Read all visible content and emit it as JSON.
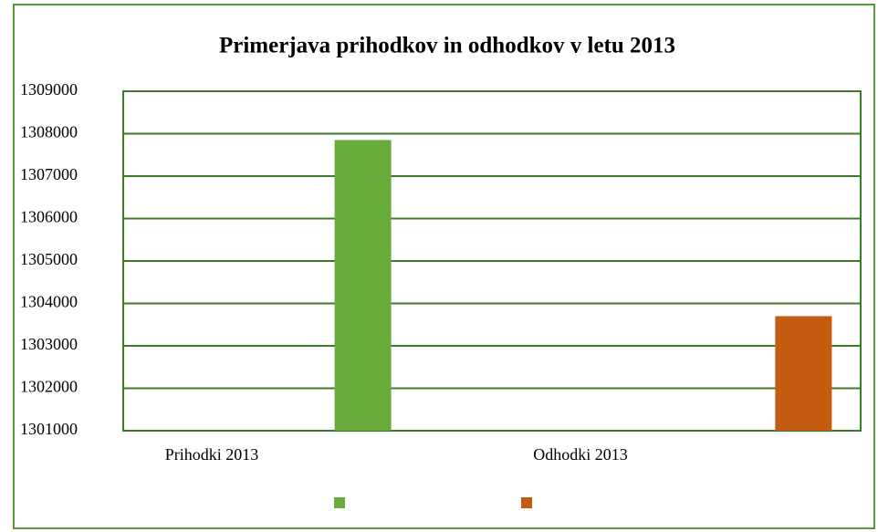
{
  "chart_data": {
    "type": "bar",
    "title": "Primerjava prihodkov in odhodkov v letu 2013",
    "categories": [
      "Prihodki 2013",
      "Odhodki 2013"
    ],
    "series": [
      {
        "color": "#6aac3c",
        "values": [
          1307850,
          null
        ]
      },
      {
        "color": "#c55a11",
        "values": [
          null,
          1303700
        ]
      }
    ],
    "ylim": [
      1301000,
      1309000
    ],
    "yticks": [
      1301000,
      1302000,
      1303000,
      1304000,
      1305000,
      1306000,
      1307000,
      1308000,
      1309000
    ],
    "grid": true
  }
}
